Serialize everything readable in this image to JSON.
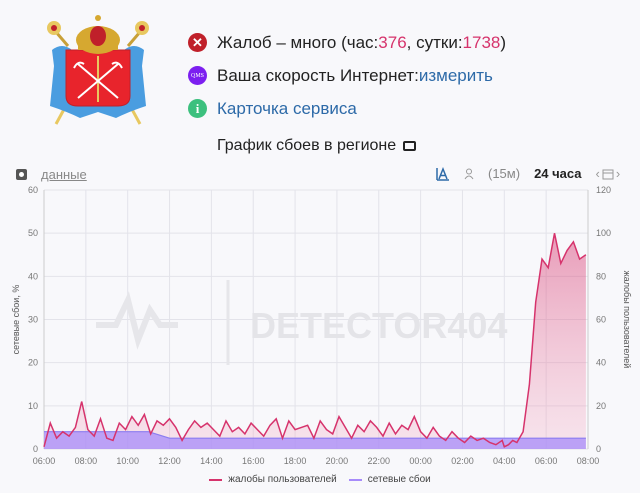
{
  "header": {
    "crest_name": "coat-of-arms-saint-petersburg",
    "status_rows": [
      {
        "icon": "error-x-icon",
        "text_prefix": "Жалоб – много (час: ",
        "hour_value": "376",
        "mid": ", сутки: ",
        "day_value": "1738",
        "suffix": ")"
      },
      {
        "icon": "qms-icon",
        "icon_text": "QMS",
        "text": "Ваша скорость Интернет: ",
        "link": "измерить"
      },
      {
        "icon": "info-icon",
        "icon_text": "i",
        "link": "Карточка сервиса"
      }
    ]
  },
  "chart_header": {
    "title": "График сбоев в регионе",
    "data_link": "данные",
    "interval": "(15м)",
    "period": "24 часа"
  },
  "colors": {
    "complaints": "#d6336c",
    "network": "#a78bfa",
    "link": "#2d6aa8"
  },
  "chart_data": {
    "type": "area",
    "title": "График сбоев в регионе",
    "watermark": "DETECTOR404",
    "xlabel": "",
    "ylabel_left": "сетевые сбои, %",
    "ylabel_right": "жалобы пользователей",
    "ylim_left": [
      0,
      60
    ],
    "ylim_right": [
      0,
      120
    ],
    "yticks_left": [
      0,
      10,
      20,
      30,
      40,
      50,
      60
    ],
    "yticks_right": [
      0,
      20,
      40,
      60,
      80,
      100,
      120
    ],
    "x_ticks": [
      "06:00",
      "08:00",
      "10:00",
      "12:00",
      "14:00",
      "16:00",
      "18:00",
      "20:00",
      "22:00",
      "00:00",
      "02:00",
      "04:00",
      "06:00",
      "08:00"
    ],
    "grid": true,
    "legend_position": "bottom",
    "legend": [
      "жалобы пользователей",
      "сетевые сбои"
    ],
    "series": [
      {
        "name": "жалобы пользователей",
        "axis": "right",
        "x_hours": [
          0,
          0.3,
          0.6,
          0.9,
          1.2,
          1.5,
          1.8,
          2.1,
          2.4,
          2.7,
          3.0,
          3.3,
          3.6,
          3.9,
          4.2,
          4.5,
          4.8,
          5.1,
          5.4,
          5.7,
          6.0,
          6.3,
          6.6,
          6.9,
          7.2,
          7.5,
          7.8,
          8.1,
          8.4,
          8.7,
          9.0,
          9.3,
          9.6,
          9.9,
          10.2,
          10.5,
          10.8,
          11.1,
          11.4,
          11.7,
          12.0,
          12.3,
          12.6,
          12.9,
          13.2,
          13.5,
          13.8,
          14.1,
          14.4,
          14.7,
          15.0,
          15.3,
          15.6,
          15.9,
          16.2,
          16.5,
          16.8,
          17.1,
          17.4,
          17.7,
          18.0,
          18.3,
          18.6,
          18.9,
          19.2,
          19.5,
          19.8,
          20.1,
          20.4,
          20.7,
          21.0,
          21.3,
          21.6,
          21.9,
          22.0,
          22.2,
          22.4,
          22.6,
          22.9,
          23.2,
          23.5,
          23.8,
          24.1,
          24.4,
          24.7,
          25.0,
          25.3,
          25.6,
          25.9
        ],
        "values": [
          1,
          12,
          5,
          8,
          6,
          10,
          22,
          9,
          6,
          14,
          5,
          4,
          12,
          9,
          15,
          11,
          16,
          7,
          13,
          11,
          14,
          10,
          4,
          9,
          13,
          10,
          12,
          9,
          6,
          13,
          8,
          10,
          7,
          12,
          9,
          6,
          11,
          14,
          5,
          13,
          9,
          10,
          11,
          5,
          13,
          9,
          7,
          15,
          10,
          5,
          11,
          8,
          13,
          10,
          6,
          12,
          7,
          11,
          9,
          15,
          8,
          5,
          10,
          6,
          4,
          8,
          5,
          3,
          6,
          4,
          5,
          3,
          2,
          4,
          1,
          2,
          4,
          3,
          8,
          30,
          68,
          88,
          84,
          100,
          86,
          92,
          96,
          88,
          90
        ],
        "note": "values approximate (read from pixels)"
      },
      {
        "name": "сетевые сбои",
        "axis": "left",
        "x_hours": [
          0,
          1,
          2,
          3,
          4,
          5,
          6,
          7,
          8,
          9,
          10,
          11,
          12,
          13,
          14,
          15,
          16,
          17,
          18,
          19,
          20,
          21,
          22,
          23,
          24,
          25,
          25.9
        ],
        "values": [
          4,
          4,
          4,
          4,
          4,
          4,
          2.5,
          2.5,
          2.5,
          2.5,
          2.5,
          2.5,
          2.5,
          2.5,
          2.5,
          2.5,
          2.5,
          2.5,
          2.5,
          2.5,
          2.5,
          2.5,
          2.5,
          2.5,
          2.5,
          2.5,
          2.5
        ]
      }
    ]
  }
}
